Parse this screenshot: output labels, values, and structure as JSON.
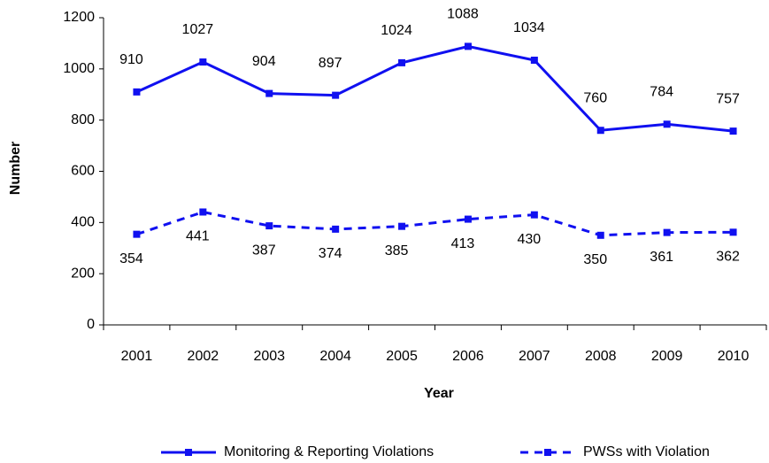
{
  "chart_data": {
    "type": "line",
    "categories": [
      "2001",
      "2002",
      "2003",
      "2004",
      "2005",
      "2006",
      "2007",
      "2008",
      "2009",
      "2010"
    ],
    "series": [
      {
        "name": "Monitoring & Reporting Violations",
        "color": "#1010f0",
        "dash": false,
        "values": [
          910,
          1027,
          904,
          897,
          1024,
          1088,
          1034,
          760,
          784,
          757
        ]
      },
      {
        "name": "PWSs with Violation",
        "color": "#1010f0",
        "dash": true,
        "values": [
          354,
          441,
          387,
          374,
          385,
          413,
          430,
          350,
          361,
          362
        ]
      }
    ],
    "xlabel": "Year",
    "ylabel": "Number",
    "ylim": [
      0,
      1200
    ],
    "yticks": [
      0,
      200,
      400,
      600,
      800,
      1000,
      1200
    ],
    "legend": "bottom"
  }
}
